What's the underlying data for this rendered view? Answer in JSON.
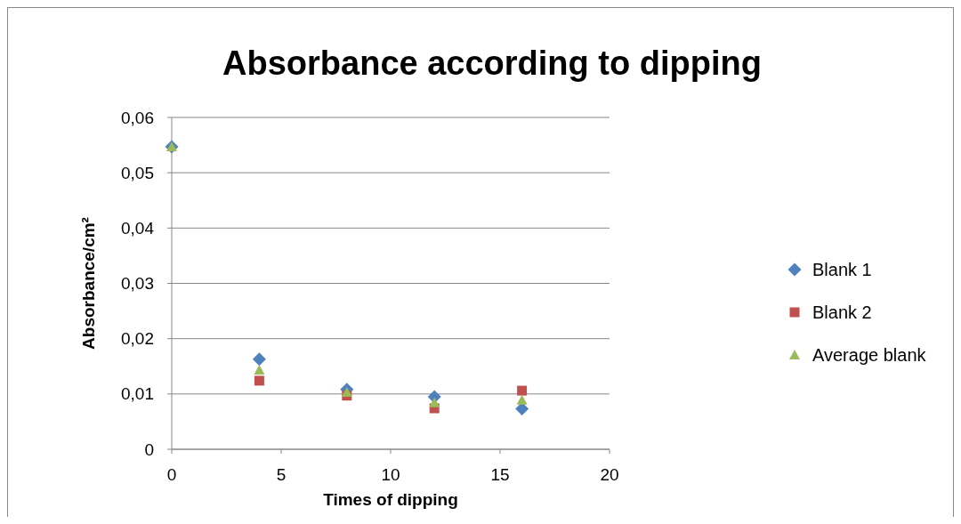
{
  "chart_data": {
    "type": "scatter",
    "title": "Absorbance according to dipping",
    "xlabel": "Times of dipping",
    "ylabel": "Absorbance/cm²",
    "xlim": [
      0,
      20
    ],
    "xticks": [
      0,
      5,
      10,
      15,
      20
    ],
    "ylim": [
      0,
      0.06
    ],
    "yticks": [
      0,
      {
        "value": 0.01,
        "label": "0,01"
      },
      {
        "value": 0.02,
        "label": "0,02"
      },
      {
        "value": 0.03,
        "label": "0,03"
      },
      {
        "value": 0.04,
        "label": "0,04"
      },
      {
        "value": 0.05,
        "label": "0,05"
      },
      {
        "value": 0.06,
        "label": "0,06"
      }
    ],
    "grid": "y",
    "legend": "right",
    "x": [
      0,
      4,
      8,
      12,
      16
    ],
    "series": [
      {
        "name": "Blank 1",
        "color": "#4f81bd",
        "marker": "diamond",
        "values": [
          0.0547,
          0.0163,
          0.0108,
          0.0095,
          0.0073
        ]
      },
      {
        "name": "Blank 2",
        "color": "#c0504d",
        "marker": "square",
        "values": [
          null,
          0.0124,
          0.0097,
          0.0074,
          0.0106
        ]
      },
      {
        "name": "Average blank",
        "color": "#9bbb59",
        "marker": "triangle",
        "values": [
          0.0547,
          0.0143,
          0.0103,
          0.0084,
          0.0089
        ]
      }
    ]
  }
}
